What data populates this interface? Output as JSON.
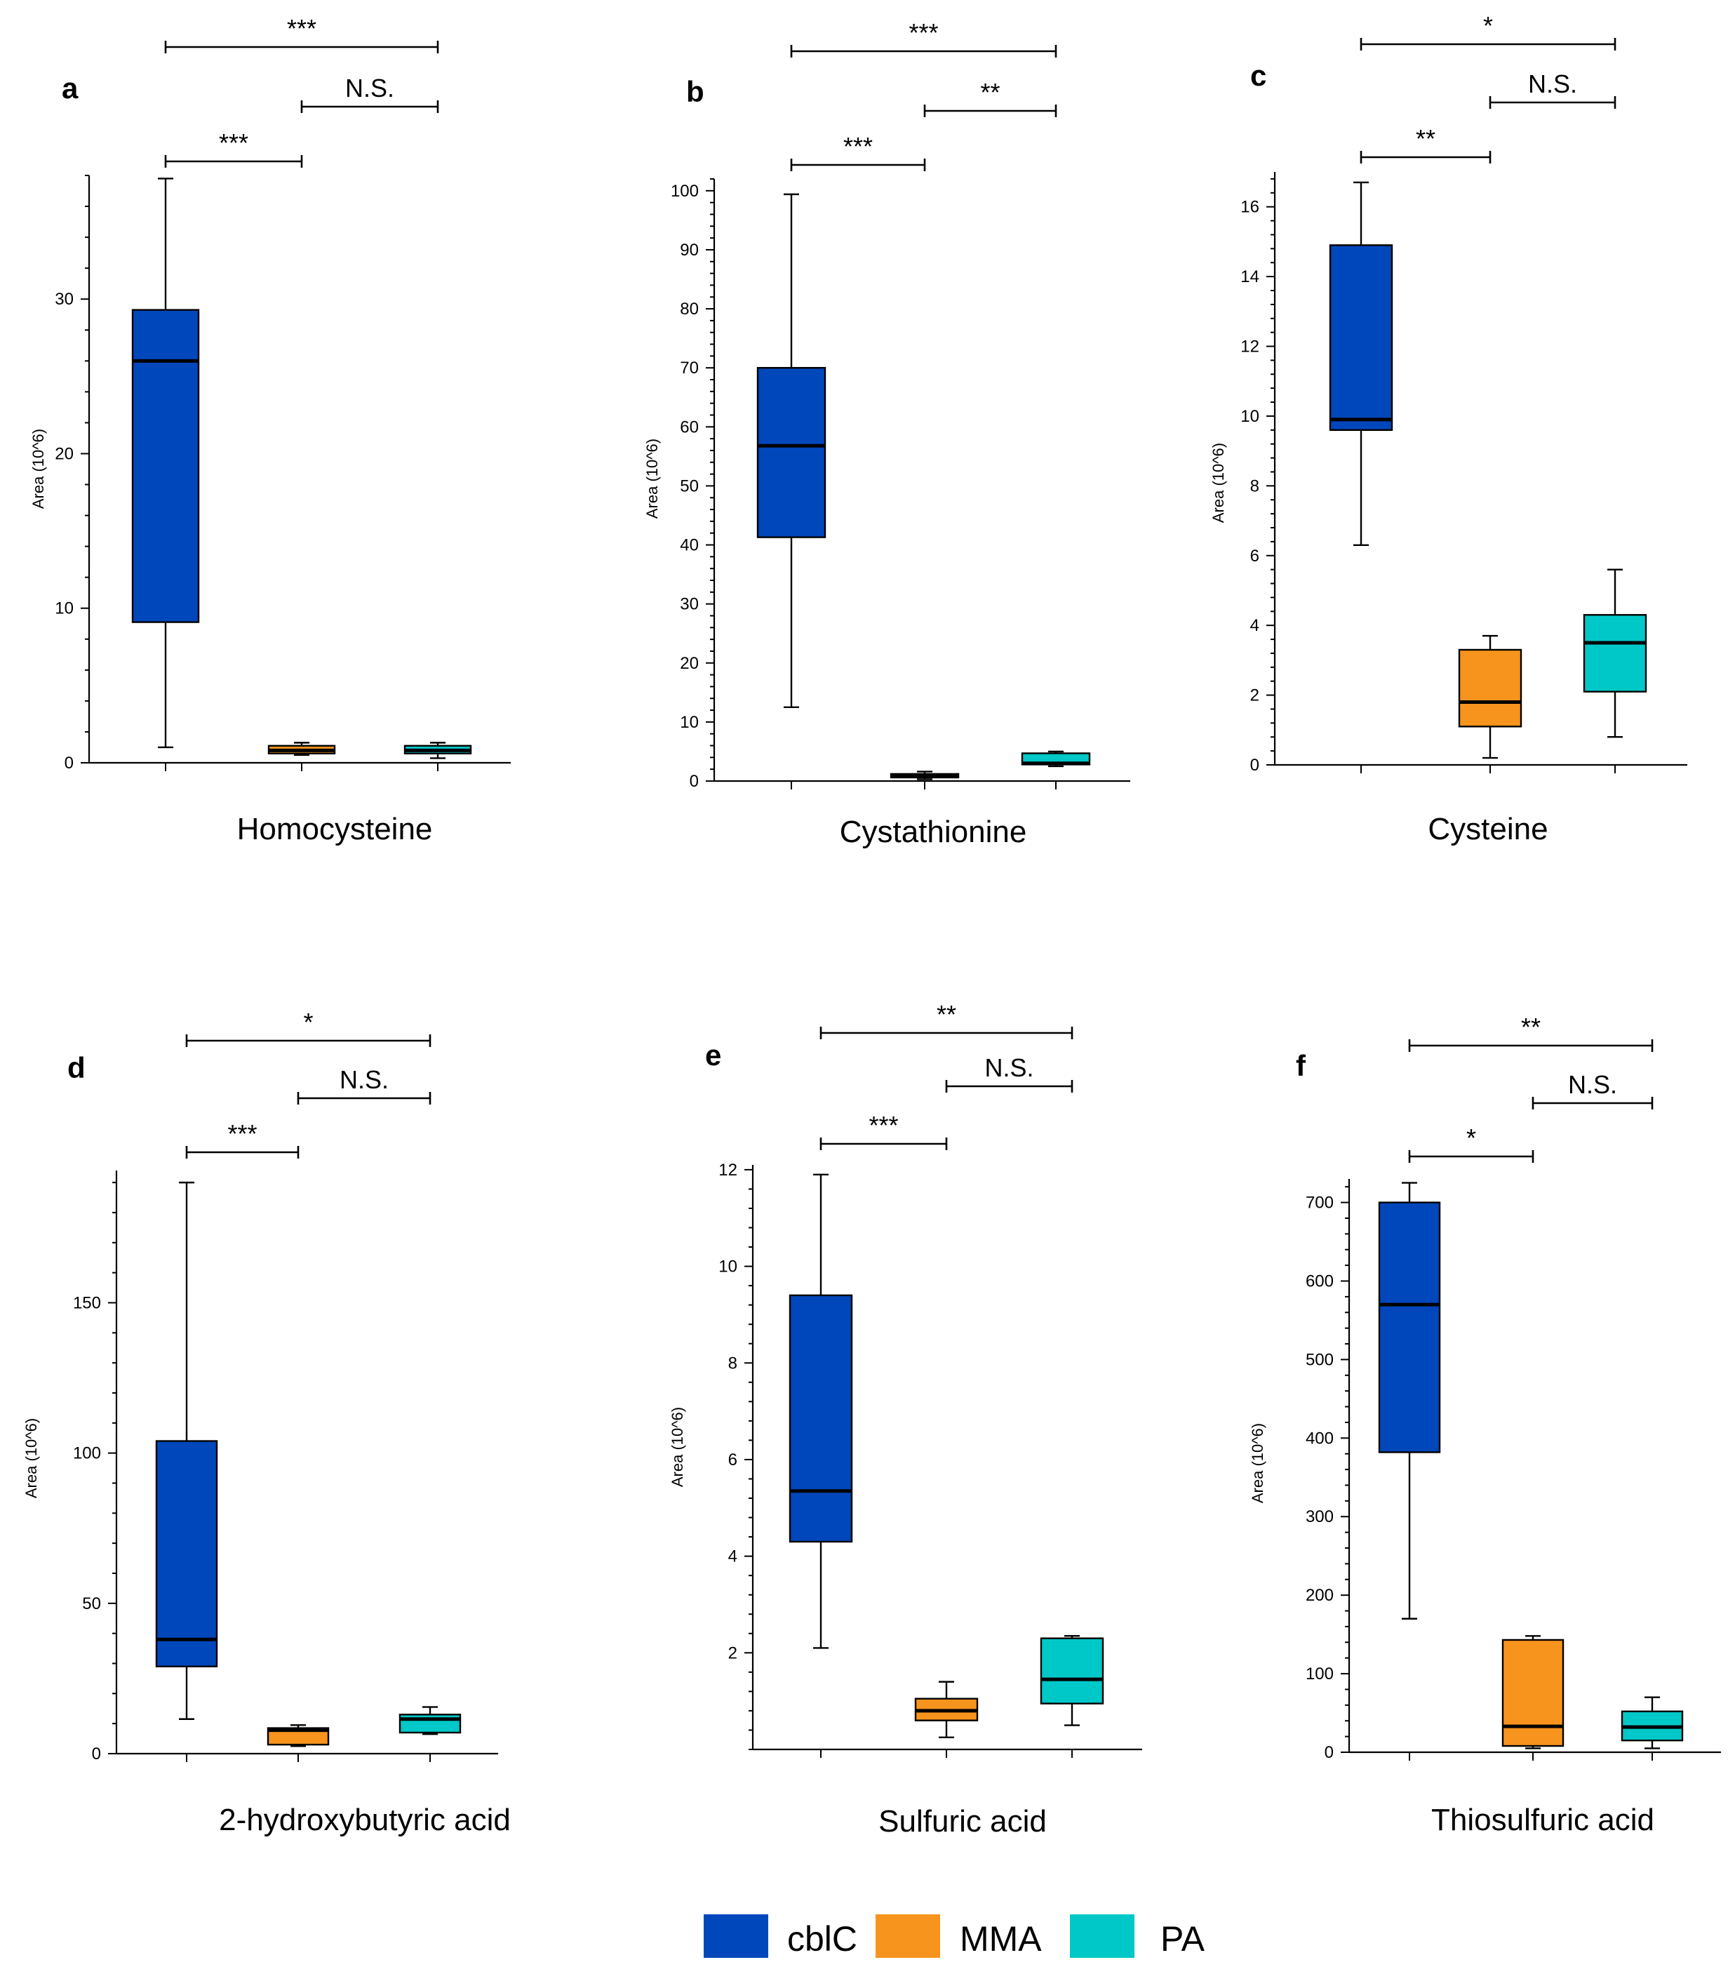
{
  "legend": {
    "items": [
      {
        "label": "cblC",
        "color": "#0047BB"
      },
      {
        "label": "MMA",
        "color": "#F7941D"
      },
      {
        "label": "PA",
        "color": "#00C8C8"
      }
    ]
  },
  "chart_data": [
    {
      "type": "boxplot",
      "panel": "a",
      "xlabel": "Homocysteine",
      "ylabel": "Area (10^6)",
      "ylim": [
        0,
        38
      ],
      "yticks": [
        0,
        10,
        20,
        30
      ],
      "groups": [
        "cblC",
        "MMA",
        "PA"
      ],
      "boxes": [
        {
          "group": "cblC",
          "min": 1.0,
          "q1": 9.1,
          "median": 26.0,
          "q3": 29.3,
          "max": 37.8
        },
        {
          "group": "MMA",
          "min": 0.5,
          "q1": 0.6,
          "median": 0.8,
          "q3": 1.1,
          "max": 1.3
        },
        {
          "group": "PA",
          "min": 0.3,
          "q1": 0.6,
          "median": 0.8,
          "q3": 1.1,
          "max": 1.3
        }
      ],
      "comparisons": [
        {
          "from": 0,
          "to": 2,
          "level": 2,
          "label": "***"
        },
        {
          "from": 1,
          "to": 2,
          "level": 1,
          "label": "N.S."
        },
        {
          "from": 0,
          "to": 1,
          "level": 0,
          "label": "***"
        }
      ]
    },
    {
      "type": "boxplot",
      "panel": "b",
      "xlabel": "Cystathionine",
      "ylabel": "Area (10^6)",
      "ylim": [
        0,
        102
      ],
      "yticks": [
        0,
        10,
        20,
        30,
        40,
        50,
        60,
        70,
        80,
        90,
        100
      ],
      "groups": [
        "cblC",
        "MMA",
        "PA"
      ],
      "boxes": [
        {
          "group": "cblC",
          "min": 12.5,
          "q1": 41.3,
          "median": 56.8,
          "q3": 70.0,
          "max": 99.4
        },
        {
          "group": "MMA",
          "min": 0.3,
          "q1": 0.6,
          "median": 0.9,
          "q3": 1.2,
          "max": 1.6
        },
        {
          "group": "PA",
          "min": 2.5,
          "q1": 2.8,
          "median": 3.0,
          "q3": 4.7,
          "max": 5.0
        }
      ],
      "comparisons": [
        {
          "from": 0,
          "to": 2,
          "level": 2,
          "label": "***"
        },
        {
          "from": 1,
          "to": 2,
          "level": 1,
          "label": "**"
        },
        {
          "from": 0,
          "to": 1,
          "level": 0,
          "label": "***"
        }
      ]
    },
    {
      "type": "boxplot",
      "panel": "c",
      "xlabel": "Cysteine",
      "ylabel": "Area (10^6)",
      "ylim": [
        0,
        17
      ],
      "yticks": [
        0,
        2,
        4,
        6,
        8,
        10,
        12,
        14,
        16
      ],
      "groups": [
        "cblC",
        "MMA",
        "PA"
      ],
      "boxes": [
        {
          "group": "cblC",
          "min": 6.3,
          "q1": 9.6,
          "median": 9.9,
          "q3": 14.9,
          "max": 16.7
        },
        {
          "group": "MMA",
          "min": 0.2,
          "q1": 1.1,
          "median": 1.8,
          "q3": 3.3,
          "max": 3.7
        },
        {
          "group": "PA",
          "min": 0.8,
          "q1": 2.1,
          "median": 3.5,
          "q3": 4.3,
          "max": 5.6
        }
      ],
      "comparisons": [
        {
          "from": 0,
          "to": 2,
          "level": 2,
          "label": "*"
        },
        {
          "from": 1,
          "to": 2,
          "level": 1,
          "label": "N.S."
        },
        {
          "from": 0,
          "to": 1,
          "level": 0,
          "label": "**"
        }
      ]
    },
    {
      "type": "boxplot",
      "panel": "d",
      "xlabel": "2-hydroxybutyric acid",
      "ylabel": "Area (10^6)",
      "ylim": [
        0,
        194
      ],
      "yticks": [
        0,
        50,
        100,
        150
      ],
      "groups": [
        "cblC",
        "MMA",
        "PA"
      ],
      "boxes": [
        {
          "group": "cblC",
          "min": 11.5,
          "q1": 29.0,
          "median": 38.0,
          "q3": 104.0,
          "max": 190.0
        },
        {
          "group": "MMA",
          "min": 2.5,
          "q1": 3.0,
          "median": 7.8,
          "q3": 8.5,
          "max": 9.5
        },
        {
          "group": "PA",
          "min": 6.5,
          "q1": 7.0,
          "median": 11.5,
          "q3": 13.0,
          "max": 15.5
        }
      ],
      "comparisons": [
        {
          "from": 0,
          "to": 2,
          "level": 2,
          "label": "*"
        },
        {
          "from": 1,
          "to": 2,
          "level": 1,
          "label": "N.S."
        },
        {
          "from": 0,
          "to": 1,
          "level": 0,
          "label": "***"
        }
      ]
    },
    {
      "type": "boxplot",
      "panel": "e",
      "xlabel": "Sulfuric acid",
      "ylabel": "Area (10^6)",
      "ylim": [
        0,
        12.1
      ],
      "yticks": [
        2,
        4,
        6,
        8,
        10,
        12
      ],
      "groups": [
        "cblC",
        "MMA",
        "PA"
      ],
      "boxes": [
        {
          "group": "cblC",
          "min": 2.1,
          "q1": 4.3,
          "median": 5.35,
          "q3": 9.4,
          "max": 11.9
        },
        {
          "group": "MMA",
          "min": 0.25,
          "q1": 0.6,
          "median": 0.8,
          "q3": 1.05,
          "max": 1.4
        },
        {
          "group": "PA",
          "min": 0.5,
          "q1": 0.95,
          "median": 1.45,
          "q3": 2.3,
          "max": 2.35
        }
      ],
      "comparisons": [
        {
          "from": 0,
          "to": 2,
          "level": 2,
          "label": "**"
        },
        {
          "from": 1,
          "to": 2,
          "level": 1,
          "label": "N.S."
        },
        {
          "from": 0,
          "to": 1,
          "level": 0,
          "label": "***"
        }
      ]
    },
    {
      "type": "boxplot",
      "panel": "f",
      "xlabel": "Thiosulfuric acid",
      "ylabel": "Area (10^6)",
      "ylim": [
        0,
        730
      ],
      "yticks": [
        0,
        100,
        200,
        300,
        400,
        500,
        600,
        700
      ],
      "groups": [
        "cblC",
        "MMA",
        "PA"
      ],
      "boxes": [
        {
          "group": "cblC",
          "min": 170,
          "q1": 382,
          "median": 570,
          "q3": 700,
          "max": 725
        },
        {
          "group": "MMA",
          "min": 5,
          "q1": 8,
          "median": 33,
          "q3": 143,
          "max": 148
        },
        {
          "group": "PA",
          "min": 5,
          "q1": 15,
          "median": 32,
          "q3": 52,
          "max": 70
        }
      ],
      "comparisons": [
        {
          "from": 0,
          "to": 2,
          "level": 2,
          "label": "**"
        },
        {
          "from": 1,
          "to": 2,
          "level": 1,
          "label": "N.S."
        },
        {
          "from": 0,
          "to": 1,
          "level": 0,
          "label": "*"
        }
      ]
    }
  ]
}
